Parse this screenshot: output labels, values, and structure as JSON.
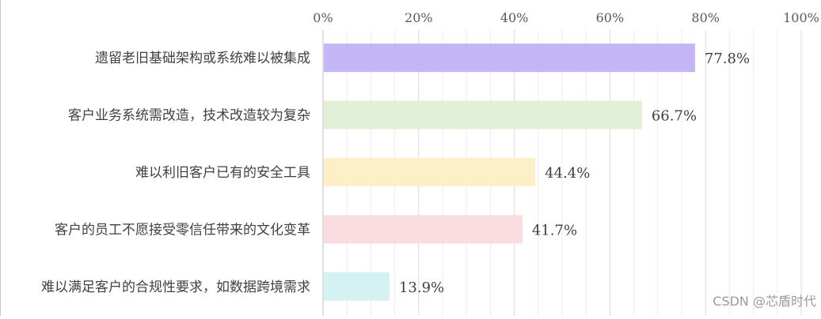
{
  "chart_data": {
    "type": "bar",
    "orientation": "horizontal",
    "categories": [
      "遗留老旧基础架构或系统难以被集成",
      "客户业务系统需改造，技术改造较为复杂",
      "难以利旧客户已有的安全工具",
      "客户的员工不愿接受零信任带来的文化变革",
      "难以满足客户的合规性要求，如数据跨境需求"
    ],
    "values": [
      77.8,
      66.7,
      44.4,
      41.7,
      13.9
    ],
    "value_labels": [
      "77.8%",
      "66.7%",
      "44.4%",
      "41.7%",
      "13.9%"
    ],
    "bar_colors": [
      "#c4b6f6",
      "#e2f0d8",
      "#fdf0c8",
      "#f9dbe0",
      "#d4f2f2"
    ],
    "xlim": [
      0,
      100
    ],
    "x_ticks": [
      "0%",
      "20%",
      "40%",
      "60%",
      "80%",
      "100%"
    ],
    "x_axis_position": "top",
    "grid": true,
    "title": "",
    "xlabel": "",
    "ylabel": ""
  },
  "watermark": "CSDN @芯盾时代"
}
